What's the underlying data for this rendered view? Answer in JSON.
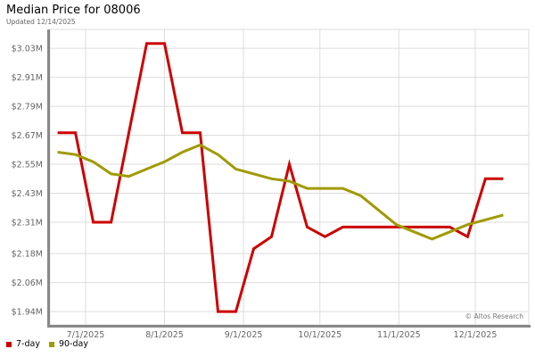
{
  "chart_data": {
    "type": "line",
    "title": "Median Price for 08006",
    "subtitle": "Updated 12/14/2025",
    "watermark": "© Altos Research",
    "xlabel": "",
    "ylabel": "",
    "x": [
      "2025-06-20",
      "2025-06-27",
      "2025-07-04",
      "2025-07-11",
      "2025-07-18",
      "2025-07-25",
      "2025-08-01",
      "2025-08-08",
      "2025-08-15",
      "2025-08-22",
      "2025-08-29",
      "2025-09-05",
      "2025-09-12",
      "2025-09-19",
      "2025-09-26",
      "2025-10-03",
      "2025-10-10",
      "2025-10-17",
      "2025-10-24",
      "2025-10-31",
      "2025-11-07",
      "2025-11-14",
      "2025-11-21",
      "2025-11-28",
      "2025-12-05",
      "2025-12-12"
    ],
    "xlim": [
      "2025-06-17",
      "2025-12-22"
    ],
    "xticks": [
      {
        "date": "2025-07-01",
        "label": "7/1/2025"
      },
      {
        "date": "2025-08-01",
        "label": "8/1/2025"
      },
      {
        "date": "2025-09-01",
        "label": "9/1/2025"
      },
      {
        "date": "2025-10-01",
        "label": "10/1/2025"
      },
      {
        "date": "2025-11-01",
        "label": "11/1/2025"
      },
      {
        "date": "2025-12-01",
        "label": "12/1/2025"
      }
    ],
    "ylim": [
      1.885,
      3.108
    ],
    "yunit": "$M",
    "yticks": [
      {
        "value": 3.03,
        "label": "$3.03M"
      },
      {
        "value": 2.91,
        "label": "$2.91M"
      },
      {
        "value": 2.79,
        "label": "$2.79M"
      },
      {
        "value": 2.67,
        "label": "$2.67M"
      },
      {
        "value": 2.55,
        "label": "$2.55M"
      },
      {
        "value": 2.43,
        "label": "$2.43M"
      },
      {
        "value": 2.31,
        "label": "$2.31M"
      },
      {
        "value": 2.18,
        "label": "$2.18M"
      },
      {
        "value": 2.06,
        "label": "$2.06M"
      },
      {
        "value": 1.94,
        "label": "$1.94M"
      }
    ],
    "grid": true,
    "legend_placement": "bottom-left",
    "series": [
      {
        "name": "7-day",
        "color": "#cc0000",
        "values": [
          2.68,
          2.68,
          2.31,
          2.31,
          2.68,
          3.05,
          3.05,
          2.68,
          2.68,
          1.94,
          1.94,
          2.2,
          2.25,
          2.55,
          2.29,
          2.25,
          2.29,
          2.29,
          2.29,
          2.29,
          2.29,
          2.29,
          2.29,
          2.25,
          2.49,
          2.49
        ]
      },
      {
        "name": "90-day",
        "color": "#a09a00",
        "values": [
          2.6,
          2.59,
          2.56,
          2.51,
          2.5,
          2.53,
          2.56,
          2.6,
          2.63,
          2.59,
          2.53,
          2.51,
          2.49,
          2.48,
          2.45,
          2.45,
          2.45,
          2.42,
          2.36,
          2.3,
          2.27,
          2.24,
          2.27,
          2.3,
          2.32,
          2.34
        ]
      }
    ]
  }
}
